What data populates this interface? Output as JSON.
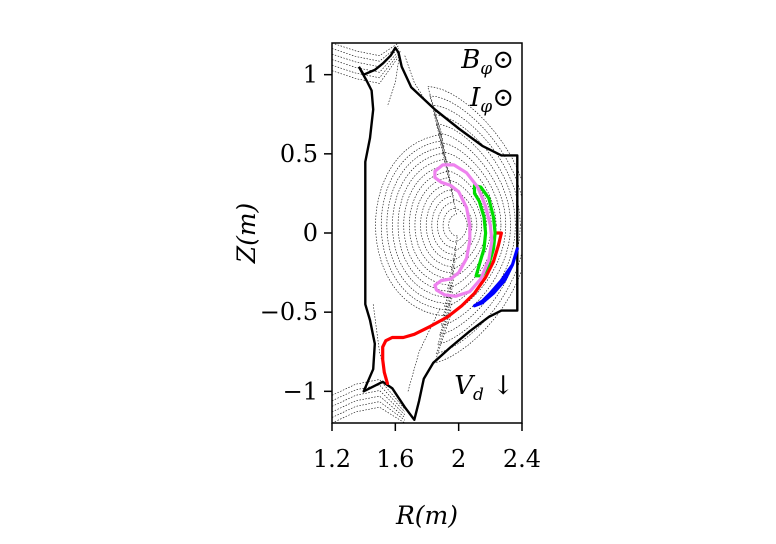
{
  "chart_data": {
    "type": "line",
    "title": "",
    "xlabel": "R(m)",
    "ylabel": "Z(m)",
    "xlim": [
      1.2,
      2.4
    ],
    "ylim": [
      -1.2,
      1.2
    ],
    "xticks": [
      {
        "value": 1.2,
        "label": "1.2"
      },
      {
        "value": 1.6,
        "label": "1.6"
      },
      {
        "value": 2.0,
        "label": "2"
      },
      {
        "value": 2.4,
        "label": "2.4"
      }
    ],
    "yticks": [
      {
        "value": 1.0,
        "label": "1"
      },
      {
        "value": 0.5,
        "label": "0.5"
      },
      {
        "value": 0.0,
        "label": "0"
      },
      {
        "value": -0.5,
        "label": "−0.5"
      },
      {
        "value": -1.0,
        "label": "−1"
      }
    ],
    "grid": false,
    "legend": "none",
    "annotations": [
      {
        "text": "B",
        "sub": "φ",
        "suffix": "⊙",
        "position": "top-right"
      },
      {
        "text": "I",
        "sub": "φ",
        "suffix": "⊙",
        "position": "top-right"
      },
      {
        "text": "V",
        "sub": "d",
        "suffix": " ↓",
        "position": "bottom-right"
      }
    ],
    "colors": {
      "wall": "#000000",
      "flux": "#000000",
      "red": "#ff0000",
      "green": "#00dd00",
      "blue": "#0000ff",
      "violet": "#ee82ee"
    },
    "flux_surfaces": {
      "axis": [
        2.0,
        0.05
      ],
      "count": 14,
      "a_min": 0.06,
      "a_max": 0.5,
      "kappa_inner": 1.15,
      "kappa_outer": 1.75,
      "delta_outer": 0.45
    },
    "wall": [
      [
        1.37,
        1.05
      ],
      [
        1.4,
        1.0
      ],
      [
        1.47,
        1.03
      ],
      [
        1.52,
        1.07
      ],
      [
        1.57,
        1.12
      ],
      [
        1.6,
        1.17
      ],
      [
        1.62,
        1.14
      ],
      [
        1.64,
        1.05
      ],
      [
        1.7,
        0.92
      ],
      [
        1.85,
        0.78
      ],
      [
        2.0,
        0.66
      ],
      [
        2.15,
        0.55
      ],
      [
        2.27,
        0.49
      ],
      [
        2.37,
        0.49
      ],
      [
        2.37,
        -0.49
      ],
      [
        2.27,
        -0.49
      ],
      [
        2.19,
        -0.53
      ],
      [
        2.07,
        -0.62
      ],
      [
        1.95,
        -0.72
      ],
      [
        1.84,
        -0.82
      ],
      [
        1.78,
        -0.92
      ],
      [
        1.75,
        -1.06
      ],
      [
        1.72,
        -1.18
      ],
      [
        1.66,
        -1.1
      ],
      [
        1.58,
        -0.98
      ],
      [
        1.52,
        -0.94
      ],
      [
        1.46,
        -0.97
      ],
      [
        1.4,
        -1.0
      ],
      [
        1.43,
        -0.93
      ],
      [
        1.46,
        -0.86
      ],
      [
        1.47,
        -0.7
      ],
      [
        1.44,
        -0.55
      ],
      [
        1.41,
        -0.45
      ],
      [
        1.41,
        0.0
      ],
      [
        1.41,
        0.45
      ],
      [
        1.44,
        0.6
      ],
      [
        1.46,
        0.78
      ],
      [
        1.45,
        0.9
      ],
      [
        1.42,
        0.96
      ],
      [
        1.37,
        1.05
      ]
    ],
    "separatrix_legs": [
      [
        [
          1.63,
          1.15
        ],
        [
          1.6,
          0.95
        ],
        [
          1.55,
          0.8
        ]
      ],
      [
        [
          1.66,
          1.12
        ],
        [
          1.72,
          0.95
        ],
        [
          1.8,
          0.82
        ]
      ],
      [
        [
          1.46,
          -0.45
        ],
        [
          1.5,
          -0.75
        ],
        [
          1.55,
          -0.95
        ]
      ],
      [
        [
          1.88,
          -0.48
        ],
        [
          1.75,
          -0.75
        ],
        [
          1.68,
          -1.0
        ]
      ]
    ],
    "orbits": [
      {
        "color": "red",
        "points": [
          [
            1.55,
            -0.95
          ],
          [
            1.53,
            -0.88
          ],
          [
            1.52,
            -0.8
          ],
          [
            1.52,
            -0.72
          ],
          [
            1.54,
            -0.68
          ],
          [
            1.58,
            -0.66
          ],
          [
            1.65,
            -0.66
          ],
          [
            1.72,
            -0.64
          ],
          [
            1.82,
            -0.59
          ],
          [
            1.93,
            -0.53
          ],
          [
            2.02,
            -0.46
          ],
          [
            2.1,
            -0.38
          ],
          [
            2.17,
            -0.28
          ],
          [
            2.22,
            -0.18
          ],
          [
            2.25,
            -0.08
          ],
          [
            2.27,
            0.0
          ],
          [
            2.24,
            0.0
          ]
        ],
        "closed": false
      },
      {
        "color": "green",
        "points": [
          [
            2.1,
            0.3
          ],
          [
            2.14,
            0.29
          ],
          [
            2.19,
            0.22
          ],
          [
            2.22,
            0.1
          ],
          [
            2.23,
            0.0
          ],
          [
            2.22,
            -0.1
          ],
          [
            2.19,
            -0.2
          ],
          [
            2.15,
            -0.27
          ],
          [
            2.11,
            -0.27
          ],
          [
            2.13,
            -0.2
          ],
          [
            2.16,
            -0.1
          ],
          [
            2.17,
            0.0
          ],
          [
            2.16,
            0.1
          ],
          [
            2.13,
            0.2
          ],
          [
            2.1,
            0.25
          ],
          [
            2.1,
            0.3
          ]
        ],
        "closed": true
      },
      {
        "color": "blue",
        "points": [
          [
            2.1,
            -0.46
          ],
          [
            2.15,
            -0.44
          ],
          [
            2.22,
            -0.38
          ],
          [
            2.29,
            -0.3
          ],
          [
            2.34,
            -0.2
          ],
          [
            2.37,
            -0.1
          ],
          [
            2.34,
            -0.2
          ],
          [
            2.27,
            -0.3
          ],
          [
            2.2,
            -0.38
          ],
          [
            2.15,
            -0.43
          ],
          [
            2.1,
            -0.46
          ]
        ],
        "closed": true
      },
      {
        "color": "violet",
        "points": [
          [
            1.85,
            0.39
          ],
          [
            1.9,
            0.43
          ],
          [
            1.97,
            0.43
          ],
          [
            2.05,
            0.38
          ],
          [
            2.12,
            0.29
          ],
          [
            2.17,
            0.17
          ],
          [
            2.2,
            0.05
          ],
          [
            2.21,
            -0.05
          ],
          [
            2.19,
            -0.17
          ],
          [
            2.14,
            -0.29
          ],
          [
            2.07,
            -0.37
          ],
          [
            1.98,
            -0.4
          ],
          [
            1.91,
            -0.39
          ],
          [
            1.86,
            -0.36
          ],
          [
            1.85,
            -0.33
          ],
          [
            1.89,
            -0.3
          ],
          [
            1.95,
            -0.29
          ],
          [
            2.0,
            -0.25
          ],
          [
            2.05,
            -0.16
          ],
          [
            2.07,
            -0.05
          ],
          [
            2.07,
            0.05
          ],
          [
            2.05,
            0.16
          ],
          [
            2.0,
            0.26
          ],
          [
            1.95,
            0.3
          ],
          [
            1.89,
            0.32
          ],
          [
            1.85,
            0.35
          ],
          [
            1.85,
            0.39
          ]
        ],
        "closed": true
      }
    ]
  }
}
